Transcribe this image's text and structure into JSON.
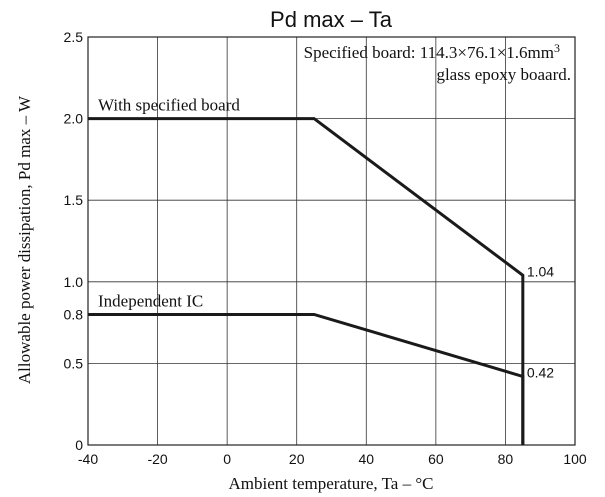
{
  "chart_data": {
    "type": "line",
    "title": "Pd max – Ta",
    "xlabel": "Ambient temperature, Ta – °C",
    "ylabel": "Allowable power dissipation, Pd max – W",
    "xlim": [
      -40,
      100
    ],
    "ylim": [
      0,
      2.5
    ],
    "x_ticks": [
      -40,
      -20,
      0,
      20,
      40,
      60,
      80,
      100
    ],
    "y_ticks": [
      0,
      0.5,
      0.8,
      1.0,
      1.5,
      2.0,
      2.5
    ],
    "x_tick_labels": [
      "-40",
      "-20",
      "0",
      "20",
      "40",
      "60",
      "80",
      "100"
    ],
    "y_tick_labels": [
      "0",
      "0.5",
      "0.8",
      "1.0",
      "1.5",
      "2.0",
      "2.5"
    ],
    "x_grid": [
      -40,
      -20,
      0,
      20,
      40,
      60,
      80,
      100
    ],
    "y_grid": [
      0,
      0.5,
      1.0,
      1.5,
      2.0,
      2.5
    ],
    "grid": true,
    "note_line1": "Specified board: 114.3×76.1×1.6mm",
    "note_superscript": "3",
    "note_line2": "glass epoxy boaard.",
    "series": [
      {
        "name": "With specified board",
        "x": [
          -40,
          25,
          85,
          85
        ],
        "y": [
          2.0,
          2.0,
          1.04,
          0
        ],
        "end_label": "1.04"
      },
      {
        "name": "Independent IC",
        "x": [
          -40,
          25,
          85,
          85
        ],
        "y": [
          0.8,
          0.8,
          0.42,
          0
        ],
        "end_label": "0.42"
      }
    ]
  }
}
